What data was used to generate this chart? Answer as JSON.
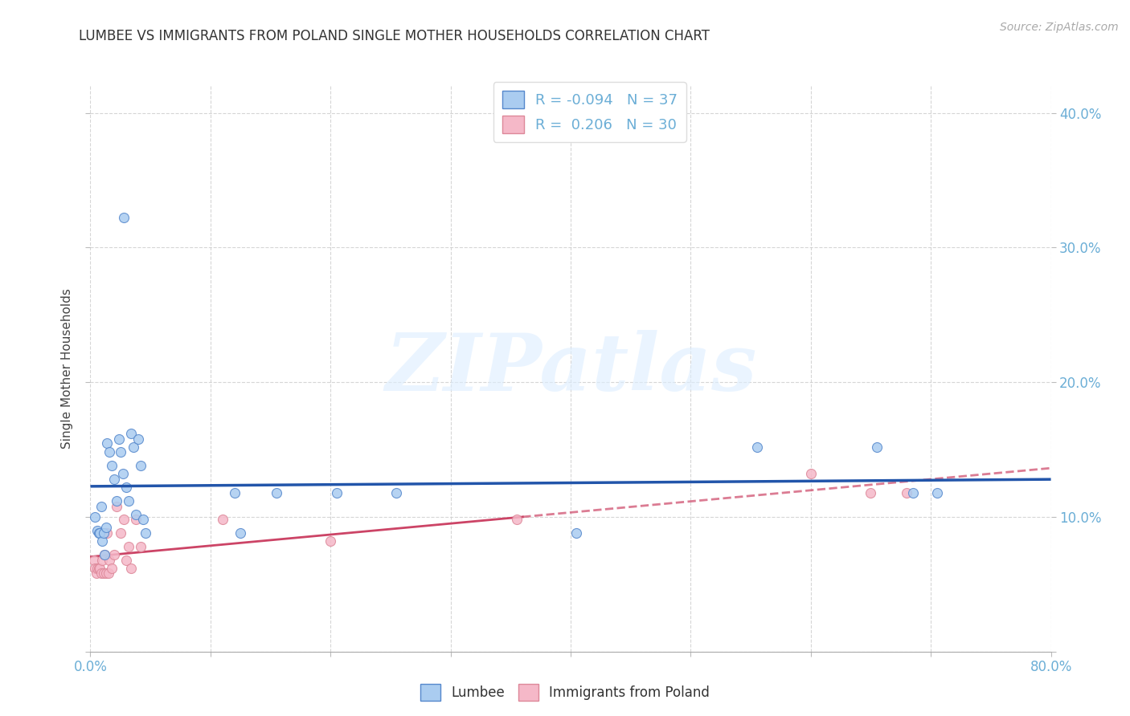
{
  "title": "LUMBEE VS IMMIGRANTS FROM POLAND SINGLE MOTHER HOUSEHOLDS CORRELATION CHART",
  "source": "Source: ZipAtlas.com",
  "ylabel": "Single Mother Households",
  "tick_color": "#6baed6",
  "watermark_text": "ZIPatlas",
  "xlim": [
    0,
    0.8
  ],
  "ylim": [
    0,
    0.42
  ],
  "xtick_positions": [
    0.0,
    0.1,
    0.2,
    0.3,
    0.4,
    0.5,
    0.6,
    0.7,
    0.8
  ],
  "xtick_labels": [
    "0.0%",
    "",
    "",
    "",
    "",
    "",
    "",
    "",
    "80.0%"
  ],
  "ytick_positions": [
    0.0,
    0.1,
    0.2,
    0.3,
    0.4
  ],
  "ytick_labels": [
    "",
    "10.0%",
    "20.0%",
    "30.0%",
    "40.0%"
  ],
  "grid_color": "#cccccc",
  "lumbee_color": "#aaccf0",
  "lumbee_edge_color": "#5588cc",
  "lumbee_line_color": "#2255aa",
  "poland_color": "#f5b8c8",
  "poland_edge_color": "#dd8899",
  "poland_line_color": "#cc4466",
  "lumbee_R": "-0.094",
  "lumbee_N": "37",
  "poland_R": "0.206",
  "poland_N": "30",
  "legend_label1": "Lumbee",
  "legend_label2": "Immigrants from Poland",
  "lumbee_x": [
    0.004,
    0.006,
    0.007,
    0.008,
    0.009,
    0.01,
    0.011,
    0.012,
    0.013,
    0.014,
    0.016,
    0.018,
    0.02,
    0.022,
    0.024,
    0.025,
    0.027,
    0.028,
    0.03,
    0.032,
    0.034,
    0.036,
    0.038,
    0.04,
    0.042,
    0.044,
    0.046,
    0.12,
    0.125,
    0.155,
    0.205,
    0.255,
    0.405,
    0.555,
    0.655,
    0.685,
    0.705
  ],
  "lumbee_y": [
    0.1,
    0.09,
    0.088,
    0.088,
    0.108,
    0.082,
    0.088,
    0.072,
    0.092,
    0.155,
    0.148,
    0.138,
    0.128,
    0.112,
    0.158,
    0.148,
    0.132,
    0.322,
    0.122,
    0.112,
    0.162,
    0.152,
    0.102,
    0.158,
    0.138,
    0.098,
    0.088,
    0.118,
    0.088,
    0.118,
    0.118,
    0.118,
    0.088,
    0.152,
    0.152,
    0.118,
    0.118
  ],
  "poland_x": [
    0.003,
    0.004,
    0.005,
    0.006,
    0.007,
    0.008,
    0.009,
    0.01,
    0.011,
    0.012,
    0.013,
    0.014,
    0.015,
    0.016,
    0.018,
    0.02,
    0.022,
    0.025,
    0.028,
    0.03,
    0.032,
    0.034,
    0.038,
    0.042,
    0.11,
    0.2,
    0.355,
    0.6,
    0.65,
    0.68
  ],
  "poland_y": [
    0.068,
    0.062,
    0.058,
    0.062,
    0.062,
    0.062,
    0.058,
    0.068,
    0.058,
    0.072,
    0.058,
    0.088,
    0.058,
    0.068,
    0.062,
    0.072,
    0.108,
    0.088,
    0.098,
    0.068,
    0.078,
    0.062,
    0.098,
    0.078,
    0.098,
    0.082,
    0.098,
    0.132,
    0.118,
    0.118
  ],
  "bg_color": "#ffffff",
  "title_fontsize": 12,
  "label_fontsize": 11,
  "tick_fontsize": 12,
  "marker_size": 75,
  "legend_fontsize": 13
}
